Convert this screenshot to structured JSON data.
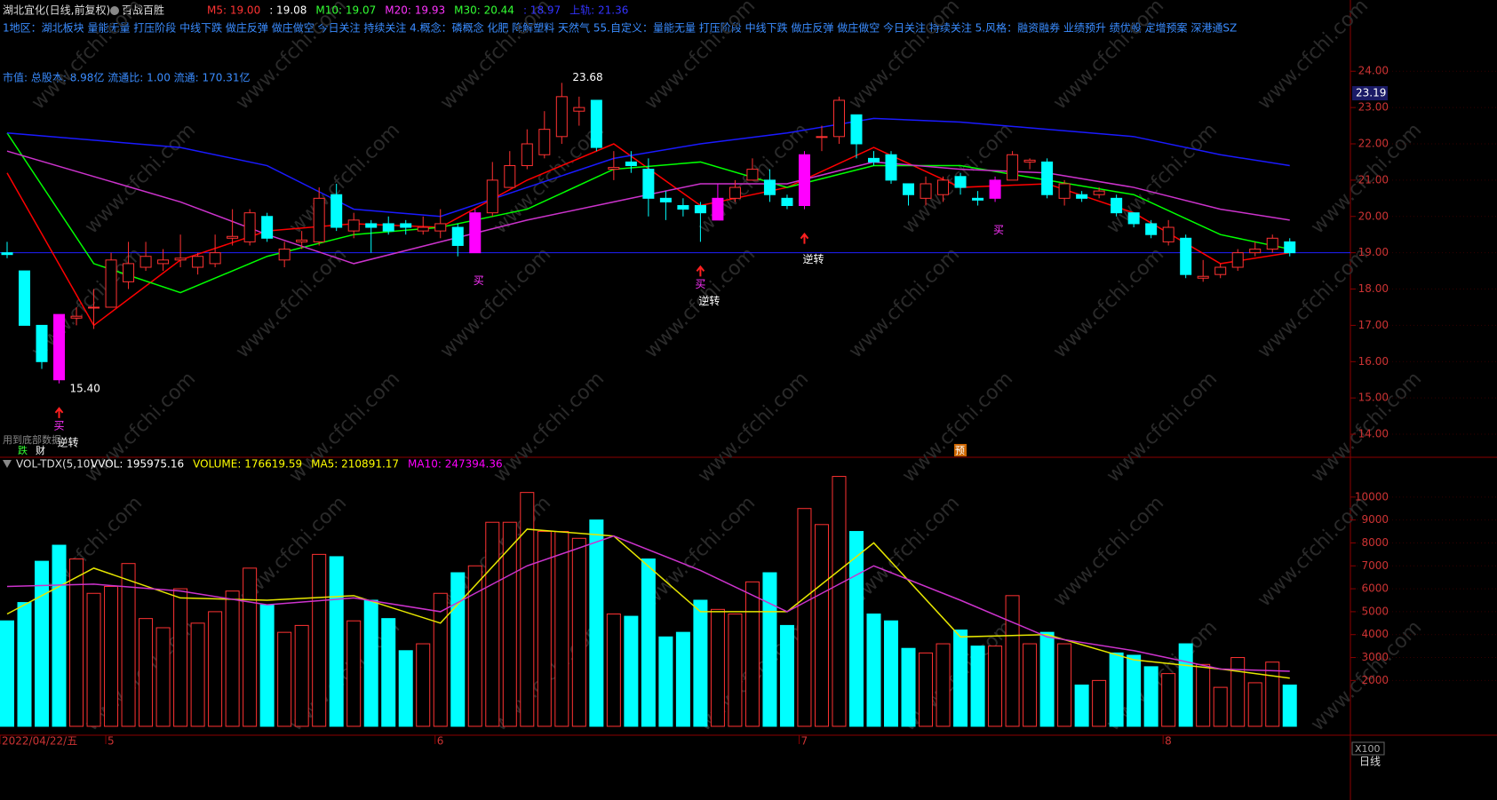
{
  "header": {
    "stock": "湖北宜化(日线,前复权)",
    "strategy": "百战百胜",
    "indicators": [
      {
        "text": "M5: 19.00",
        "color": "#ff3333"
      },
      {
        "text": ": 19.08",
        "color": "#ffffff"
      },
      {
        "text": "M10: 19.07",
        "color": "#33ff33"
      },
      {
        "text": "M20: 19.93",
        "color": "#ff33ff"
      },
      {
        "text": "M30: 20.44",
        "color": "#33ff33"
      },
      {
        "text": ": 18.97",
        "color": "#3333ff"
      },
      {
        "text": "上轨: 21.36",
        "color": "#3333ff"
      }
    ],
    "concepts": "1地区：湖北板块  量能无量 打压阶段 中线下跌 做庄反弹 做庄做空 今日关注 持续关注   4.概念：磷概念 化肥 降解塑料 天然气    55.自定义：量能无量 打压阶段 中线下跌 做庄反弹 做庄做空 今日关注 持续关注  5.风格：融资融券 业绩预升 绩优股 定增预案 深港通SZ",
    "market_cap": "市值: 总股本: 8.98亿  流通比: 1.00  流通: 170.31亿",
    "cursor_price": "23.19",
    "period": "日线",
    "vol_unit": "X100",
    "bottom_left": "用到底部数据",
    "tag1": "跌",
    "tag2": "财",
    "tag3": "预"
  },
  "watermark": "www.cfchi.com",
  "chart_data": [
    {
      "type": "candlestick",
      "open": [
        19.0,
        18.5,
        17.0,
        17.3,
        17.2,
        17.5,
        17.5,
        18.2,
        18.6,
        18.7,
        18.8,
        18.6,
        18.7,
        19.4,
        19.3,
        20.0,
        18.8,
        19.3,
        19.3,
        20.6,
        19.6,
        19.8,
        19.8,
        19.8,
        19.6,
        19.6,
        19.7,
        19.0,
        20.1,
        20.8,
        21.4,
        21.7,
        22.2,
        22.9,
        23.2,
        21.3,
        21.5,
        21.3,
        20.5,
        20.3,
        20.3,
        19.9,
        20.5,
        21.0,
        21.0,
        20.5,
        20.3,
        22.2,
        22.2,
        22.8,
        21.6,
        21.7,
        20.9,
        20.5,
        20.6,
        21.1,
        20.5,
        20.5,
        21.0,
        21.5,
        21.5,
        20.5,
        20.6,
        20.6,
        20.5,
        20.1,
        19.8,
        19.3,
        19.4,
        18.3,
        18.4,
        18.6,
        19.0,
        19.1,
        19.3
      ],
      "high": [
        19.3,
        18.5,
        17.0,
        17.3,
        17.5,
        18.0,
        19.0,
        19.3,
        19.3,
        19.1,
        19.5,
        19.0,
        19.5,
        20.2,
        20.2,
        20.1,
        19.3,
        19.6,
        20.8,
        20.9,
        20.1,
        19.9,
        20.0,
        19.9,
        20.0,
        20.2,
        19.8,
        20.2,
        21.5,
        21.8,
        22.4,
        22.9,
        23.68,
        23.3,
        23.2,
        21.8,
        21.8,
        21.6,
        20.7,
        20.5,
        20.4,
        20.9,
        21.0,
        21.6,
        21.3,
        20.6,
        21.8,
        22.5,
        23.3,
        22.8,
        21.8,
        21.8,
        20.9,
        21.1,
        21.1,
        21.2,
        20.7,
        21.1,
        21.8,
        21.6,
        21.6,
        21.0,
        20.7,
        20.8,
        20.6,
        20.1,
        19.9,
        19.9,
        19.5,
        18.8,
        18.7,
        19.1,
        19.3,
        19.5,
        19.4
      ],
      "low": [
        18.85,
        17.0,
        15.8,
        15.4,
        17.0,
        16.9,
        17.5,
        18.0,
        18.5,
        18.5,
        18.6,
        18.4,
        18.6,
        19.2,
        19.2,
        19.3,
        18.6,
        19.1,
        19.2,
        19.6,
        19.4,
        19.0,
        19.5,
        19.5,
        19.5,
        19.4,
        18.9,
        19.0,
        20.0,
        20.8,
        21.3,
        21.6,
        22.0,
        22.5,
        21.8,
        21.0,
        21.2,
        20.0,
        19.9,
        20.0,
        19.3,
        19.9,
        20.4,
        21.0,
        20.4,
        20.2,
        20.2,
        21.8,
        22.0,
        21.6,
        21.4,
        20.9,
        20.3,
        20.3,
        20.4,
        20.6,
        20.3,
        20.4,
        21.0,
        21.3,
        20.5,
        20.3,
        20.4,
        20.5,
        20.0,
        19.7,
        19.4,
        19.2,
        18.3,
        18.2,
        18.3,
        18.5,
        18.9,
        19.0,
        18.9
      ],
      "close": [
        18.95,
        17.0,
        16.0,
        15.5,
        17.25,
        17.5,
        18.8,
        18.7,
        18.9,
        18.8,
        18.85,
        18.9,
        19.0,
        19.45,
        20.1,
        19.4,
        19.1,
        19.35,
        20.5,
        19.7,
        19.9,
        19.7,
        19.6,
        19.7,
        19.7,
        19.8,
        19.2,
        20.1,
        21.0,
        21.4,
        22.0,
        22.4,
        23.3,
        23.0,
        21.9,
        21.35,
        21.4,
        20.5,
        20.4,
        20.2,
        20.1,
        20.5,
        20.8,
        21.3,
        20.6,
        20.3,
        21.7,
        22.2,
        23.2,
        22.0,
        21.5,
        21.0,
        20.6,
        20.9,
        21.0,
        20.8,
        20.45,
        21.0,
        21.7,
        21.55,
        20.6,
        20.9,
        20.5,
        20.7,
        20.1,
        19.8,
        19.5,
        19.7,
        18.4,
        18.35,
        18.6,
        19.0,
        19.1,
        19.4,
        19.0
      ],
      "up_color": "#ff3232",
      "down_color": "#00ffff",
      "highlight": [
        3,
        27,
        41,
        46,
        57
      ],
      "highlight_color": "#ff00ff",
      "lines": [
        {
          "name": "M5",
          "color": "#ff0000",
          "x": [
            0,
            5,
            10,
            15,
            20,
            25,
            30,
            35,
            40,
            45,
            50,
            55,
            60,
            65,
            70,
            74
          ],
          "values": [
            21.2,
            17.0,
            18.8,
            19.6,
            19.8,
            19.7,
            21.0,
            22.0,
            20.3,
            20.8,
            21.9,
            20.8,
            20.9,
            20.1,
            18.7,
            19.0
          ]
        },
        {
          "name": "M10",
          "color": "#00ff00",
          "x": [
            0,
            5,
            10,
            15,
            20,
            25,
            30,
            35,
            40,
            45,
            50,
            55,
            60,
            65,
            70,
            74
          ],
          "values": [
            22.3,
            18.7,
            17.9,
            18.9,
            19.5,
            19.7,
            20.2,
            21.3,
            21.5,
            20.8,
            21.4,
            21.4,
            21.0,
            20.6,
            19.5,
            19.1
          ]
        },
        {
          "name": "M20",
          "color": "#cc33cc",
          "x": [
            0,
            5,
            10,
            15,
            20,
            25,
            30,
            35,
            40,
            45,
            50,
            55,
            60,
            65,
            70,
            74
          ],
          "values": [
            21.8,
            21.1,
            20.4,
            19.5,
            18.7,
            19.3,
            19.9,
            20.4,
            20.9,
            20.9,
            21.5,
            21.3,
            21.2,
            20.8,
            20.2,
            19.9
          ]
        },
        {
          "name": "M30",
          "color": "#1a1aff",
          "x": [
            0,
            5,
            10,
            15,
            20,
            25,
            30,
            35,
            40,
            45,
            50,
            55,
            60,
            65,
            70,
            74
          ],
          "values": [
            22.3,
            22.1,
            21.9,
            21.4,
            20.2,
            20.0,
            20.8,
            21.6,
            22.0,
            22.3,
            22.7,
            22.6,
            22.4,
            22.2,
            21.7,
            21.4
          ]
        }
      ],
      "price_line": 19.0,
      "annotations": [
        {
          "x": 32,
          "value": 23.68,
          "label": "23.68"
        },
        {
          "x": 3,
          "value": 15.4,
          "label": "15.40"
        }
      ],
      "signals": [
        {
          "x": 3,
          "buy": "买",
          "text": "逆转"
        },
        {
          "x": 40,
          "buy": "买",
          "text": "逆转"
        },
        {
          "x": 46,
          "text": "逆转"
        }
      ],
      "magenta_marks": [
        {
          "x": 27,
          "text": "买"
        },
        {
          "x": 57,
          "text": "买"
        }
      ],
      "ylim": [
        13.5,
        25.4
      ],
      "yticks": [
        {
          "value": 14,
          "label": "14.00"
        },
        {
          "value": 15,
          "label": "15.00"
        },
        {
          "value": 16,
          "label": "16.00"
        },
        {
          "value": 17,
          "label": "17.00"
        },
        {
          "value": 18,
          "label": "18.00"
        },
        {
          "value": 19,
          "label": "19.00"
        },
        {
          "value": 20,
          "label": "20.00"
        },
        {
          "value": 21,
          "label": "21.00"
        },
        {
          "value": 22,
          "label": "22.00"
        },
        {
          "value": 23,
          "label": "23.00"
        },
        {
          "value": 24,
          "label": "24.00"
        }
      ]
    },
    {
      "type": "bar",
      "title": "VOL-TDX(5,10)",
      "legend": [
        {
          "text": "VVOL: 195975.16",
          "color": "#ffffff"
        },
        {
          "text": "VOLUME: 176619.59",
          "color": "#ffff00"
        },
        {
          "text": "MA5: 210891.17",
          "color": "#ffff00"
        },
        {
          "text": "MA10: 247394.36",
          "color": "#ff00ff"
        }
      ],
      "values": [
        4600,
        5400,
        7200,
        7900,
        7300,
        5800,
        6100,
        7100,
        4700,
        4300,
        6000,
        4500,
        5000,
        5900,
        6900,
        5300,
        4100,
        4400,
        7500,
        7400,
        4600,
        5500,
        4700,
        3300,
        3600,
        5800,
        6700,
        7000,
        8900,
        8900,
        10200,
        8500,
        8500,
        8200,
        9000,
        4900,
        4800,
        7300,
        3900,
        4100,
        5500,
        5100,
        4900,
        6300,
        6700,
        4400,
        9500,
        8800,
        10900,
        8500,
        4900,
        4600,
        3400,
        3200,
        3600,
        4200,
        3500,
        3500,
        5700,
        3600,
        4100,
        3600,
        1800,
        2000,
        3200,
        3100,
        2600,
        2300,
        3600,
        2700,
        1700,
        3000,
        1900,
        2800,
        1800
      ],
      "lines": [
        {
          "name": "MA5",
          "color": "#e6e600",
          "x": [
            0,
            5,
            10,
            15,
            20,
            25,
            30,
            35,
            40,
            45,
            50,
            55,
            60,
            65,
            70,
            74
          ],
          "values": [
            4900,
            6900,
            5600,
            5500,
            5700,
            4500,
            8600,
            8300,
            5000,
            5000,
            8000,
            3900,
            4000,
            2900,
            2500,
            2100
          ]
        },
        {
          "name": "MA10",
          "color": "#cc33cc",
          "x": [
            0,
            5,
            10,
            15,
            20,
            25,
            30,
            35,
            40,
            45,
            50,
            55,
            60,
            65,
            70,
            74
          ],
          "values": [
            6100,
            6200,
            5900,
            5300,
            5600,
            5000,
            7000,
            8300,
            6800,
            5000,
            7000,
            5500,
            3900,
            3300,
            2500,
            2400
          ]
        }
      ],
      "ylim": [
        0,
        11000
      ],
      "yticks": [
        2000,
        3000,
        4000,
        5000,
        6000,
        7000,
        8000,
        9000,
        10000
      ],
      "date_labels": [
        {
          "x": 0,
          "label": "2022/04/22/五"
        },
        {
          "x": 6,
          "label": "5"
        },
        {
          "x": 25,
          "label": "6"
        },
        {
          "x": 46,
          "label": "7"
        },
        {
          "x": 67,
          "label": "8"
        }
      ]
    }
  ]
}
